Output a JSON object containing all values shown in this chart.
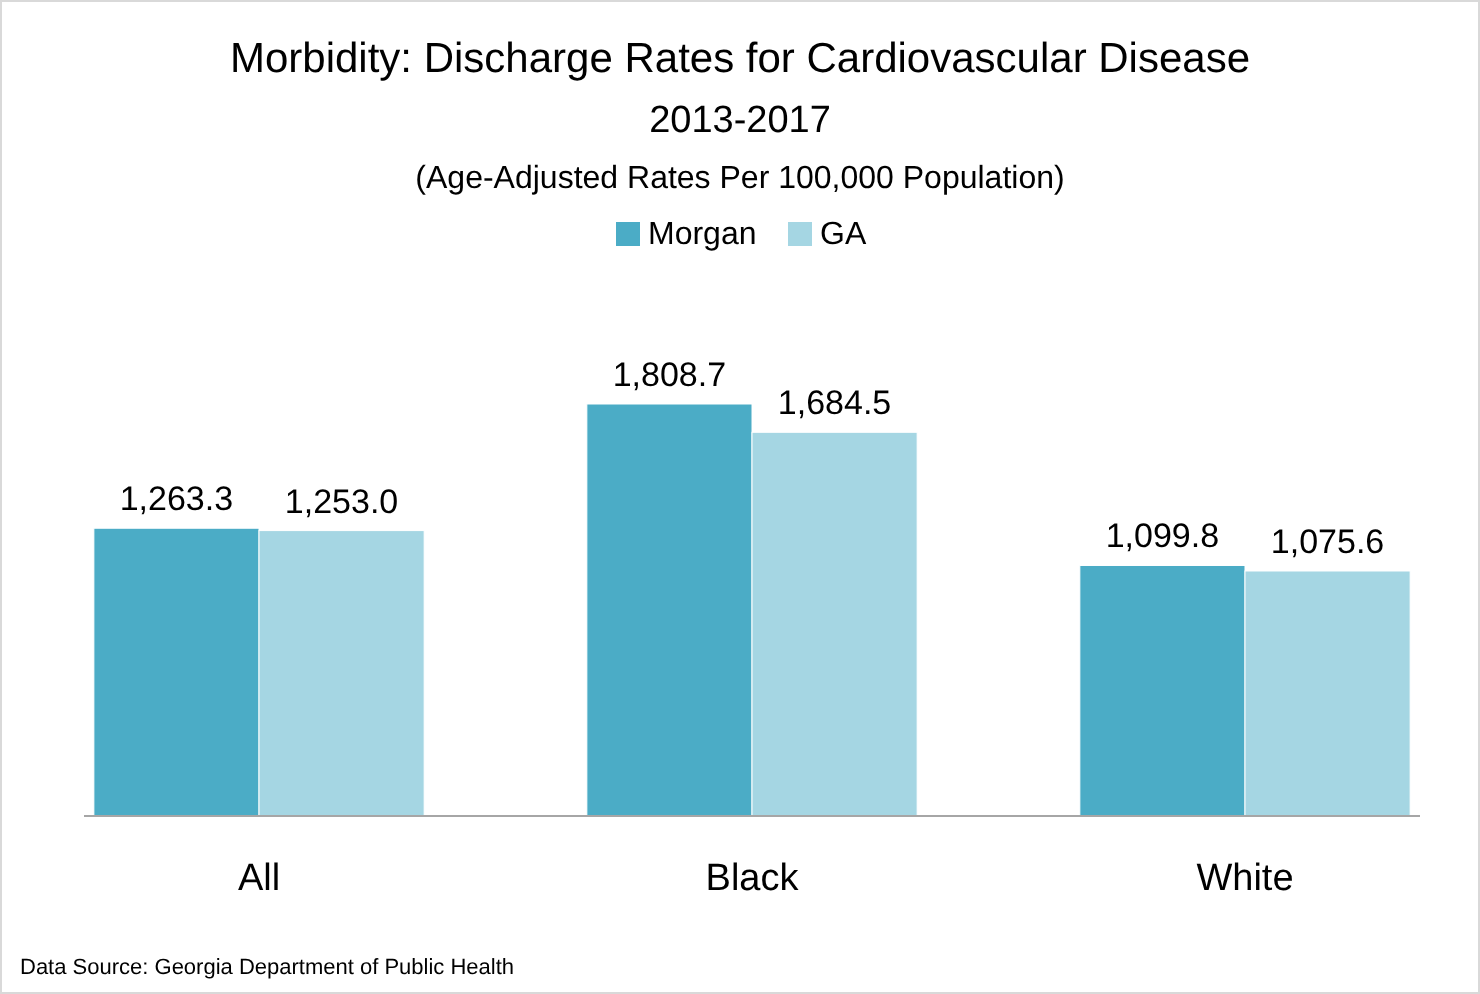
{
  "chart_data": {
    "type": "bar",
    "title": "Morbidity: Discharge Rates for Cardiovascular Disease",
    "subtitle": "2013-2017\n(Age-Adjusted Rates Per 100,000 Population)",
    "categories": [
      "All",
      "Black",
      "White"
    ],
    "series": [
      {
        "name": "Morgan",
        "color": "#4bacc6",
        "values": [
          1263.3,
          1808.7,
          1099.8
        ],
        "value_labels": [
          "1,263.3",
          "1,808.7",
          "1,099.8"
        ]
      },
      {
        "name": "GA",
        "color": "#a5d6e3",
        "values": [
          1253.0,
          1684.5,
          1075.6
        ],
        "value_labels": [
          "1,253.0",
          "1,684.5",
          "1,075.6"
        ]
      }
    ],
    "legend": "top",
    "annotations": [
      "Data Source: Georgia Department of Public Health"
    ]
  }
}
